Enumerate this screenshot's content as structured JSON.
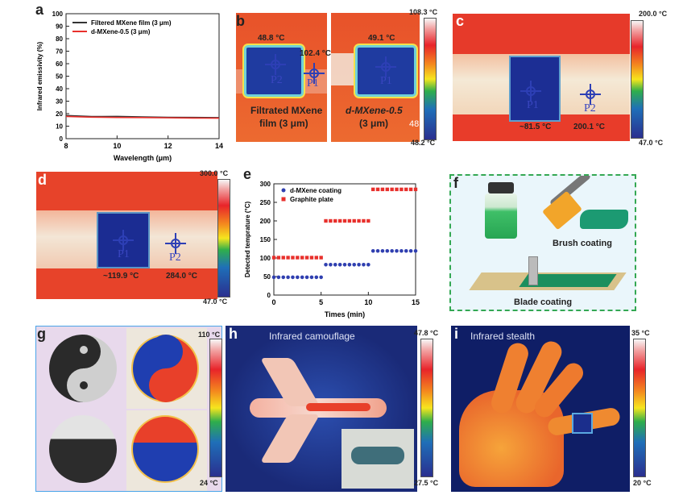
{
  "panels": {
    "a": "a",
    "b": "b",
    "c": "c",
    "d": "d",
    "e": "e",
    "f": "f",
    "g": "g",
    "h": "h",
    "i": "i"
  },
  "chart_data": [
    {
      "type": "line",
      "panel": "a",
      "xlabel": "Wavelength (μm)",
      "ylabel": "Infrared emissivity (%)",
      "xlim": [
        8,
        14
      ],
      "ylim": [
        0,
        100
      ],
      "xticks": [
        8,
        10,
        12,
        14
      ],
      "yticks": [
        0,
        10,
        20,
        30,
        40,
        50,
        60,
        70,
        80,
        90,
        100
      ],
      "legend_position": "top-left",
      "x": [
        8,
        9,
        10,
        11,
        12,
        13,
        14
      ],
      "series": [
        {
          "name": "Filtered MXene film (3 μm)",
          "color": "#333333",
          "values": [
            18.5,
            17.7,
            17.8,
            17.4,
            17.1,
            17.0,
            16.8
          ]
        },
        {
          "name": "d-MXene-0.5 (3 μm)",
          "color": "#e8302c",
          "values": [
            17.8,
            17.2,
            17.0,
            16.9,
            16.7,
            16.5,
            16.4
          ]
        }
      ]
    },
    {
      "type": "scatter",
      "panel": "e",
      "xlabel": "Times (min)",
      "ylabel": "Detected temprature (°C)",
      "xlim": [
        0,
        15
      ],
      "ylim": [
        0,
        300
      ],
      "xticks": [
        0,
        5,
        10,
        15
      ],
      "yticks": [
        0,
        50,
        100,
        150,
        200,
        250,
        300
      ],
      "legend_position": "top-left",
      "series": [
        {
          "name": "d-MXene coating",
          "color": "#2f3fb0",
          "marker": "circle",
          "x": [
            0,
            0.5,
            1,
            1.5,
            2,
            2.5,
            3,
            3.5,
            4,
            4.5,
            5,
            5.5,
            6,
            6.5,
            7,
            7.5,
            8,
            8.5,
            9,
            9.5,
            10,
            10.5,
            11,
            11.5,
            12,
            12.5,
            13,
            13.5,
            14,
            14.5,
            15
          ],
          "y": [
            48,
            48,
            48,
            48,
            48,
            48,
            48,
            48,
            48,
            48,
            48,
            82,
            82,
            82,
            82,
            82,
            82,
            82,
            82,
            82,
            82,
            119,
            119,
            119,
            119,
            119,
            119,
            119,
            119,
            119,
            119
          ]
        },
        {
          "name": "Graphite plate",
          "color": "#e8302c",
          "marker": "square",
          "x": [
            0,
            0.5,
            1,
            1.5,
            2,
            2.5,
            3,
            3.5,
            4,
            4.5,
            5,
            5.5,
            6,
            6.5,
            7,
            7.5,
            8,
            8.5,
            9,
            9.5,
            10,
            10.5,
            11,
            11.5,
            12,
            12.5,
            13,
            13.5,
            14,
            14.5,
            15
          ],
          "y": [
            101,
            101,
            101,
            101,
            101,
            101,
            101,
            101,
            101,
            101,
            101,
            200,
            200,
            200,
            200,
            200,
            200,
            200,
            200,
            200,
            200,
            285,
            285,
            285,
            285,
            285,
            285,
            285,
            285,
            285,
            285
          ]
        }
      ]
    }
  ],
  "b": {
    "t1": "48.8 °C",
    "t2": "102.4 °C",
    "t3": "49.1 °C",
    "p1": "P2",
    "p2": "P1",
    "p3": "P1",
    "cap1a": "Filtrated MXene",
    "cap1b": "film (3 μm)",
    "cap2a": "d-MXene-0.5",
    "cap2b": "(3 μm)",
    "edge": "48",
    "cmax": "108.3 °C",
    "cmin": "48.2 °C"
  },
  "c": {
    "t1": "~81.5 °C",
    "t2": "200.1 °C",
    "p1": "P1",
    "p2": "P2",
    "cmax": "200.0 °C",
    "cmin": "47.0 °C"
  },
  "d": {
    "t1": "~119.9 °C",
    "t2": "284.0 °C",
    "p1": "P1",
    "p2": "P2",
    "cmax": "300.0 °C",
    "cmin": "47.0 °C"
  },
  "f": {
    "brush": "Brush coating",
    "blade": "Blade coating"
  },
  "g": {
    "cmax": "110 °C",
    "cmin": "24 °C"
  },
  "h": {
    "title": "Infrared camouflage",
    "cmax": "47.8 °C",
    "cmin": "27.5 °C"
  },
  "i": {
    "title": "Infrared stealth",
    "cmax": "35 °C",
    "cmin": "20 °C"
  }
}
